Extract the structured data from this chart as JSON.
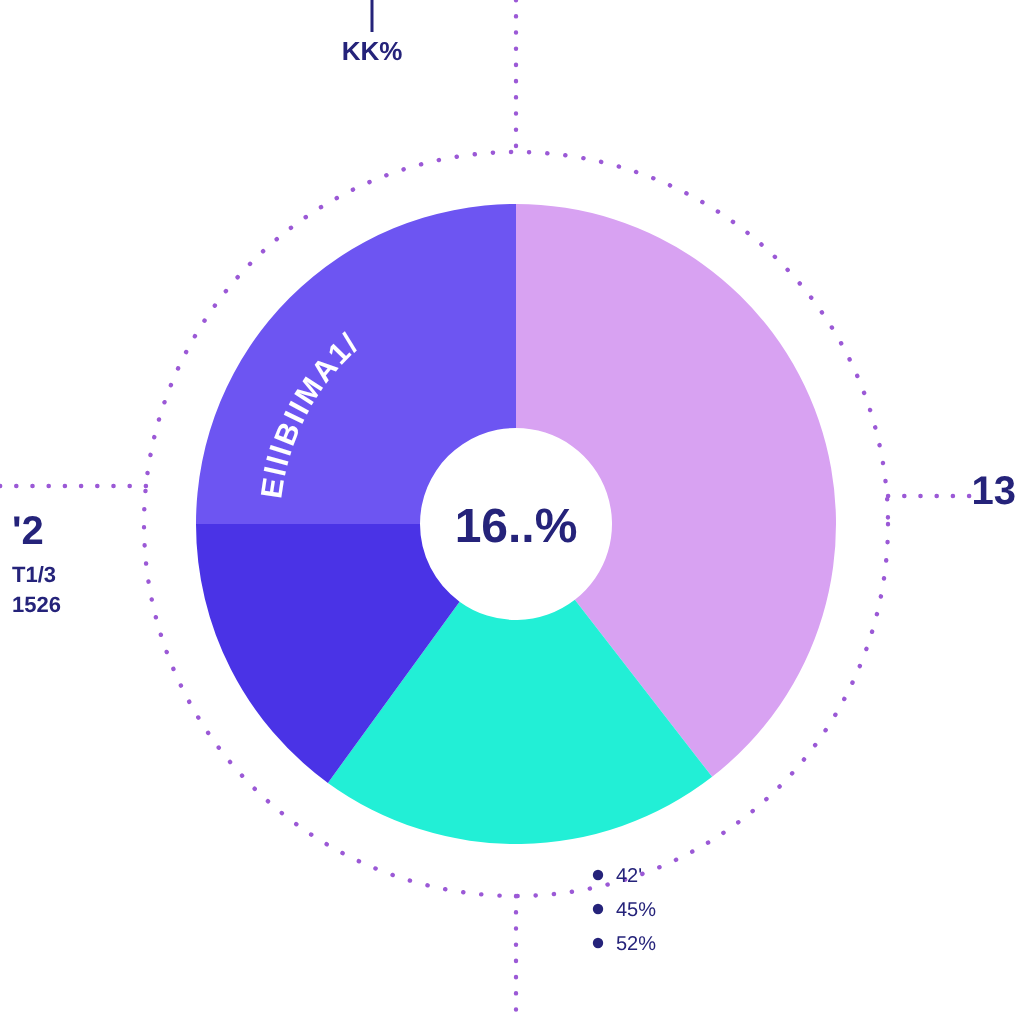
{
  "chart_data": {
    "type": "donut",
    "categories": [
      null,
      null,
      null,
      null
    ],
    "values": [
      39.5,
      20.5,
      15,
      25
    ],
    "colors": [
      "#d8a2f2",
      "#22efd6",
      "#4a33e6",
      "#6d55f2"
    ],
    "annotations": [
      "16..%",
      "KK%",
      "'2",
      "T1/3",
      "1526",
      "13",
      "42'",
      "45%",
      "52%",
      "ElllBIIMA1/"
    ]
  }
}
